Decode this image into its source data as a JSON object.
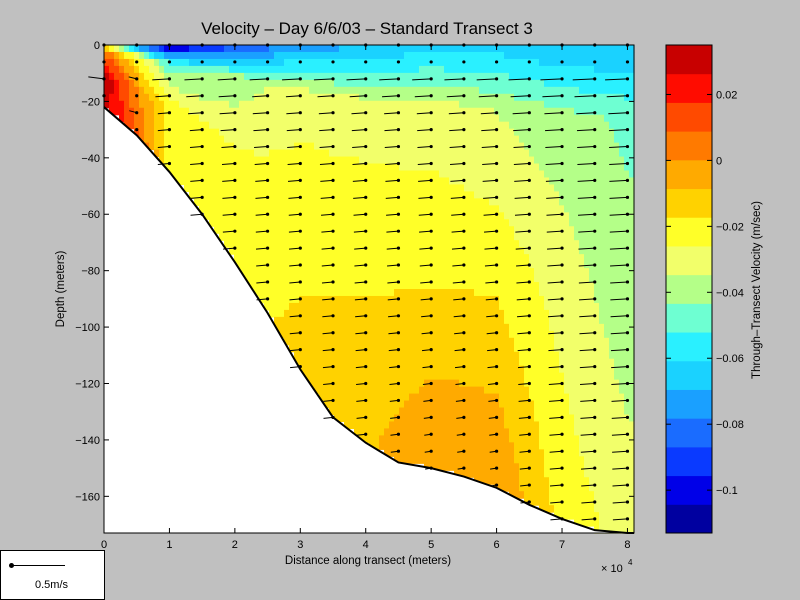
{
  "chart_data": {
    "type": "heatmap",
    "title": "Velocity – Day 6/6/03 – Standard Transect 3",
    "xlabel": "Distance along transect (meters)",
    "ylabel": "Depth (meters)",
    "x_multiplier": "× 10",
    "x_multiplier_exp": "4",
    "xlim": [
      0,
      8.1
    ],
    "ylim": [
      -173,
      0
    ],
    "xticks": [
      "0",
      "1",
      "2",
      "3",
      "4",
      "5",
      "6",
      "7",
      "8"
    ],
    "yticks": [
      "0",
      "−20",
      "−40",
      "−60",
      "−80",
      "−100",
      "−120",
      "−140",
      "−160"
    ],
    "colorbar": {
      "label": "Through–Transect Velocity (m/sec)",
      "ticks": [
        "0.02",
        "0",
        "−0.02",
        "−0.04",
        "−0.06",
        "−0.08",
        "−0.1"
      ],
      "range": [
        -0.113,
        0.035
      ],
      "colors": [
        "#0000a0",
        "#0000e8",
        "#0a3aff",
        "#1a6cff",
        "#1aa0ff",
        "#1ad2ff",
        "#2af0ff",
        "#6effd2",
        "#b4ff88",
        "#f2ff6a",
        "#ffff28",
        "#ffd200",
        "#ffaa00",
        "#ff7a00",
        "#ff4a00",
        "#ff0c00",
        "#c80000"
      ]
    },
    "bottom_profile": {
      "x": [
        0,
        0.5,
        1,
        1.5,
        2,
        2.5,
        3,
        3.5,
        4,
        4.5,
        5,
        5.5,
        6,
        6.5,
        7,
        7.5,
        8,
        8.1
      ],
      "depth": [
        -22,
        -32,
        -45,
        -60,
        -77,
        -95,
        -115,
        -132,
        -141,
        -148,
        -150,
        -153,
        -157,
        -163,
        -168,
        -172,
        -173,
        -173
      ]
    },
    "velocity_field": [
      {
        "x": 0,
        "v": [
          -0.02,
          0.01,
          0.035,
          0.03
        ]
      },
      {
        "x": 0.5,
        "v": [
          -0.08,
          -0.02,
          0.0,
          0.01
        ]
      },
      {
        "x": 1,
        "v": [
          -0.11,
          -0.05,
          -0.02,
          -0.02
        ]
      },
      {
        "x": 2,
        "v": [
          -0.09,
          -0.04,
          -0.025,
          -0.02
        ]
      },
      {
        "x": 3,
        "v": [
          -0.075,
          -0.03,
          -0.02,
          -0.015
        ]
      },
      {
        "x": 4,
        "v": [
          -0.07,
          -0.03,
          -0.02,
          -0.01
        ]
      },
      {
        "x": 5,
        "v": [
          -0.065,
          -0.03,
          -0.02,
          0.0
        ]
      },
      {
        "x": 6,
        "v": [
          -0.065,
          -0.035,
          -0.02,
          0.0
        ]
      },
      {
        "x": 7,
        "v": [
          -0.07,
          -0.04,
          -0.03,
          -0.02
        ]
      },
      {
        "x": 8,
        "v": [
          -0.07,
          -0.045,
          -0.04,
          -0.03
        ]
      }
    ],
    "scale_arrow_label": "0.5m/s"
  }
}
